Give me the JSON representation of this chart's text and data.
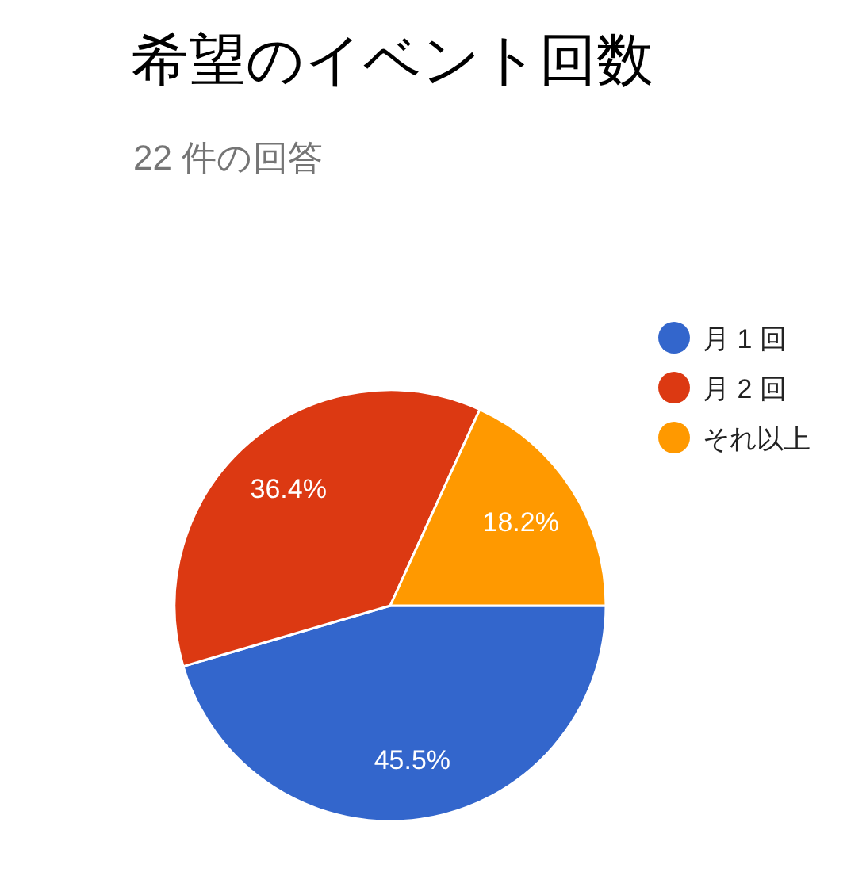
{
  "chart_data": {
    "type": "pie",
    "title": "希望のイベント回数",
    "subtitle": "22 件の回答",
    "categories": [
      "月 1 回",
      "月 2 回",
      "それ以上"
    ],
    "values": [
      45.5,
      36.4,
      18.2
    ],
    "value_labels": [
      "45.5%",
      "36.4%",
      "18.2%"
    ],
    "colors": [
      "#3366cc",
      "#dc3912",
      "#ff9900"
    ],
    "legend": "right"
  }
}
